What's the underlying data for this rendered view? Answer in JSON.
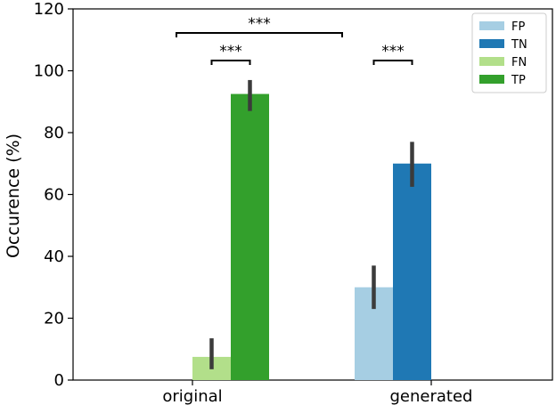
{
  "chart_data": {
    "type": "bar",
    "categories": [
      "original",
      "generated"
    ],
    "ylabel": "Occurence (%)",
    "xlabel": "",
    "ylim": [
      0,
      120
    ],
    "yticks": [
      "0",
      "20",
      "40",
      "60",
      "80",
      "100",
      "120"
    ],
    "grid": false,
    "legend_position": "top-right",
    "series": [
      {
        "name": "FP",
        "color": "#a6cee3",
        "values": [
          null,
          30
        ],
        "err_low": [
          null,
          23
        ],
        "err_high": [
          null,
          37
        ]
      },
      {
        "name": "TN",
        "color": "#1f78b4",
        "values": [
          null,
          70
        ],
        "err_low": [
          null,
          62.5
        ],
        "err_high": [
          null,
          77
        ]
      },
      {
        "name": "FN",
        "color": "#b2df8a",
        "values": [
          7.5,
          null
        ],
        "err_low": [
          3.5,
          null
        ],
        "err_high": [
          13.5,
          null
        ]
      },
      {
        "name": "TP",
        "color": "#33a02c",
        "values": [
          92.5,
          null
        ],
        "err_low": [
          87,
          null
        ],
        "err_high": [
          97,
          null
        ]
      }
    ],
    "annotations": [
      {
        "text": "***",
        "from": "original",
        "to": "generated"
      },
      {
        "text": "***",
        "from": "original-FN",
        "to": "original-TP"
      },
      {
        "text": "***",
        "from": "generated-FP",
        "to": "generated-TN"
      }
    ]
  }
}
